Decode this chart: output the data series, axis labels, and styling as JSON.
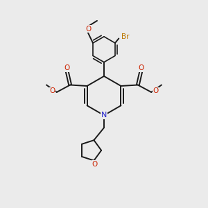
{
  "background_color": "#ebebeb",
  "bond_color": "#1a1a1a",
  "nitrogen_color": "#2222cc",
  "oxygen_color": "#cc2200",
  "bromine_color": "#bb7700",
  "figsize": [
    3.0,
    3.0
  ],
  "dpi": 100,
  "xlim": [
    0,
    10
  ],
  "ylim": [
    0,
    10
  ]
}
